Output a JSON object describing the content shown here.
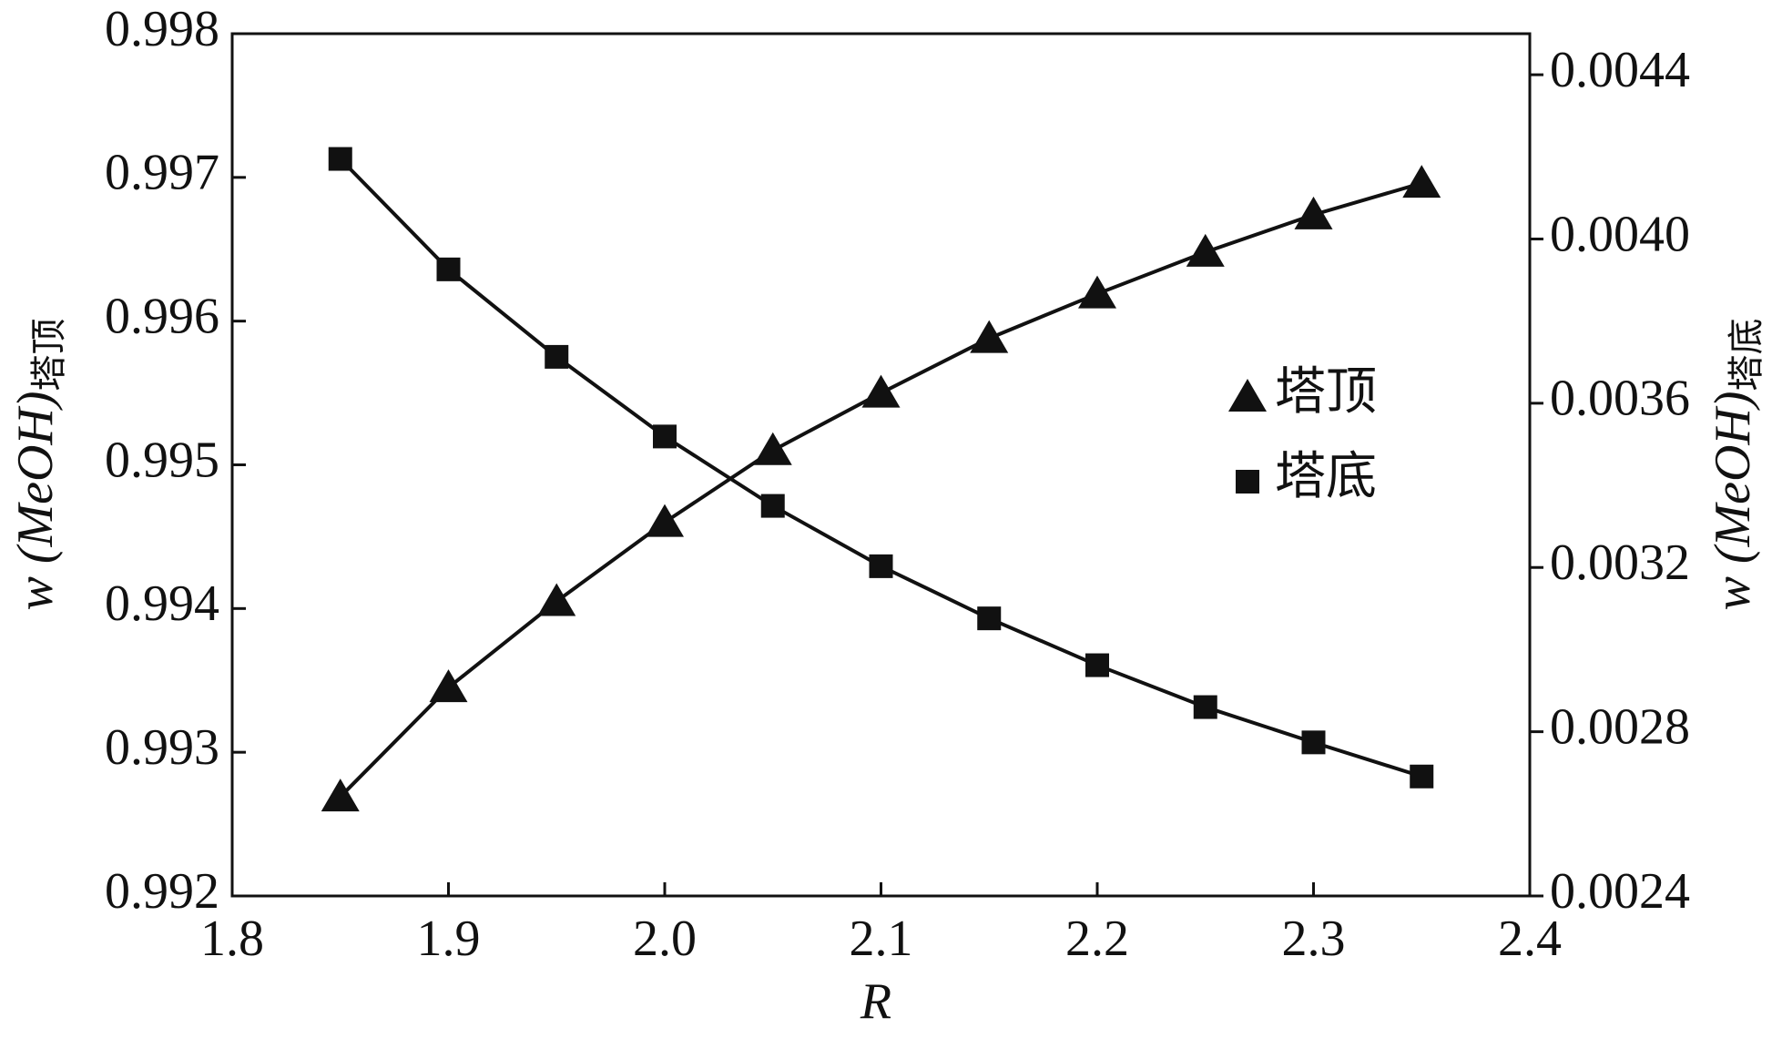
{
  "chart_data": {
    "type": "line",
    "x_label": "R",
    "y_label": "w (MeOH)",
    "y_label_subscript": "塔顶",
    "y2_label": "w (MeOH)",
    "y2_label_subscript": "塔底",
    "x": [
      1.85,
      1.9,
      1.95,
      2.0,
      2.05,
      2.1,
      2.15,
      2.2,
      2.25,
      2.3,
      2.35
    ],
    "series": [
      {
        "name": "塔顶",
        "color": "#111111",
        "marker": "triangle",
        "axis": "y",
        "values": [
          0.99269,
          0.99345,
          0.99405,
          0.9946,
          0.9951,
          0.9955,
          0.99588,
          0.99619,
          0.99648,
          0.99674,
          0.99696
        ]
      },
      {
        "name": "塔底",
        "color": "#111111",
        "marker": "square",
        "axis": "y2",
        "values": [
          0.004195,
          0.003926,
          0.003713,
          0.003519,
          0.00335,
          0.003203,
          0.003076,
          0.002962,
          0.00286,
          0.002774,
          0.002691
        ]
      }
    ],
    "xlim": [
      1.8,
      2.4
    ],
    "xticks": [
      1.8,
      1.9,
      {
        "value": 2,
        "label": "2.0"
      },
      2.1,
      2.2,
      2.3,
      2.4
    ],
    "ylim": [
      0.992,
      0.998
    ],
    "yticks": [
      0.992,
      0.993,
      0.994,
      0.995,
      0.996,
      0.997,
      0.998
    ],
    "y2lim": [
      0.0024,
      0.0045
    ],
    "y2ticks": [
      0.0024,
      0.0028,
      0.0032,
      0.0036,
      {
        "value": 0.004,
        "label": "0.0040"
      },
      0.0044
    ],
    "grid": false,
    "legend": "right"
  }
}
